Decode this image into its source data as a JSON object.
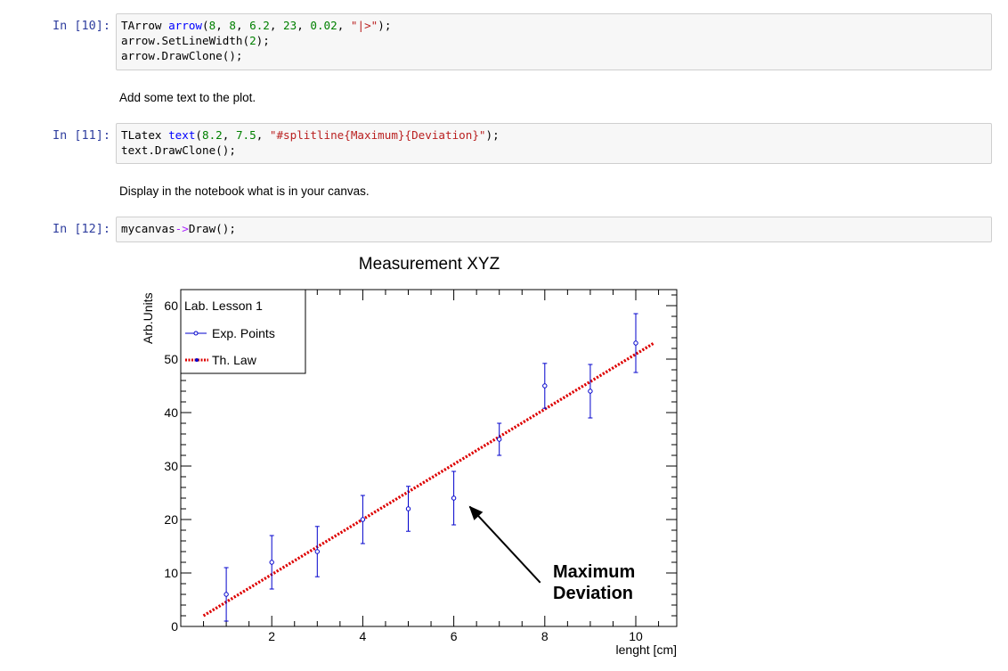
{
  "cells": [
    {
      "prompt": "In [10]:",
      "lines": [
        [
          {
            "t": "TArrow ",
            "c": ""
          },
          {
            "t": "arrow",
            "c": "ident"
          },
          {
            "t": "(",
            "c": ""
          },
          {
            "t": "8",
            "c": "num"
          },
          {
            "t": ", ",
            "c": ""
          },
          {
            "t": "8",
            "c": "num"
          },
          {
            "t": ", ",
            "c": ""
          },
          {
            "t": "6.2",
            "c": "num"
          },
          {
            "t": ", ",
            "c": ""
          },
          {
            "t": "23",
            "c": "num"
          },
          {
            "t": ", ",
            "c": ""
          },
          {
            "t": "0.02",
            "c": "num"
          },
          {
            "t": ", ",
            "c": ""
          },
          {
            "t": "\"|>\"",
            "c": "str"
          },
          {
            "t": ");",
            "c": ""
          }
        ],
        [
          {
            "t": "arrow.SetLineWidth(",
            "c": ""
          },
          {
            "t": "2",
            "c": "num"
          },
          {
            "t": ");",
            "c": ""
          }
        ],
        [
          {
            "t": "arrow.DrawClone();",
            "c": ""
          }
        ]
      ]
    },
    {
      "prompt": "In [11]:",
      "lines": [
        [
          {
            "t": "TLatex ",
            "c": ""
          },
          {
            "t": "text",
            "c": "ident"
          },
          {
            "t": "(",
            "c": ""
          },
          {
            "t": "8.2",
            "c": "num"
          },
          {
            "t": ", ",
            "c": ""
          },
          {
            "t": "7.5",
            "c": "num"
          },
          {
            "t": ", ",
            "c": ""
          },
          {
            "t": "\"#splitline{Maximum}{Deviation}\"",
            "c": "str"
          },
          {
            "t": ");",
            "c": ""
          }
        ],
        [
          {
            "t": "text.DrawClone();",
            "c": ""
          }
        ]
      ]
    },
    {
      "prompt": "In [12]:",
      "lines": [
        [
          {
            "t": "mycanvas",
            "c": ""
          },
          {
            "t": "->",
            "c": "op"
          },
          {
            "t": "Draw();",
            "c": ""
          }
        ]
      ]
    }
  ],
  "markdown": {
    "text1": "Add some text to the plot.",
    "text2": "Display in the notebook what is in your canvas."
  },
  "colors": {
    "prompt": "#303f9f",
    "points": "#0000cc",
    "law": "#dd0000",
    "arrow": "#000000"
  },
  "chart_data": {
    "type": "scatter",
    "title": "Measurement XYZ",
    "xlabel": "lenght [cm]",
    "ylabel": "Arb.Units",
    "xlim": [
      0,
      10.9
    ],
    "ylim": [
      0,
      63
    ],
    "xticks": [
      2,
      4,
      6,
      8,
      10
    ],
    "yticks": [
      0,
      10,
      20,
      30,
      40,
      50,
      60
    ],
    "legend": {
      "placement": "top-left",
      "header": "Lab. Lesson 1",
      "entries": [
        "Exp. Points",
        "Th. Law"
      ]
    },
    "series": [
      {
        "name": "Exp. Points",
        "x": [
          1,
          2,
          3,
          4,
          5,
          6,
          7,
          8,
          9,
          10
        ],
        "y": [
          6,
          12,
          14,
          20,
          22,
          24,
          35,
          45,
          44,
          53
        ],
        "yerr": [
          5,
          5,
          4.7,
          4.5,
          4.2,
          5,
          3,
          4.2,
          5,
          5.5
        ]
      },
      {
        "name": "Th. Law",
        "x": [
          0.5,
          10.4
        ],
        "y": [
          2,
          53
        ]
      }
    ],
    "annotation": {
      "lines": [
        "Maximum",
        "Deviation"
      ],
      "x": 8.2,
      "y": 7.5,
      "arrow": {
        "x1": 8,
        "y1": 8,
        "x2": 6.2,
        "y2": 23
      }
    }
  }
}
